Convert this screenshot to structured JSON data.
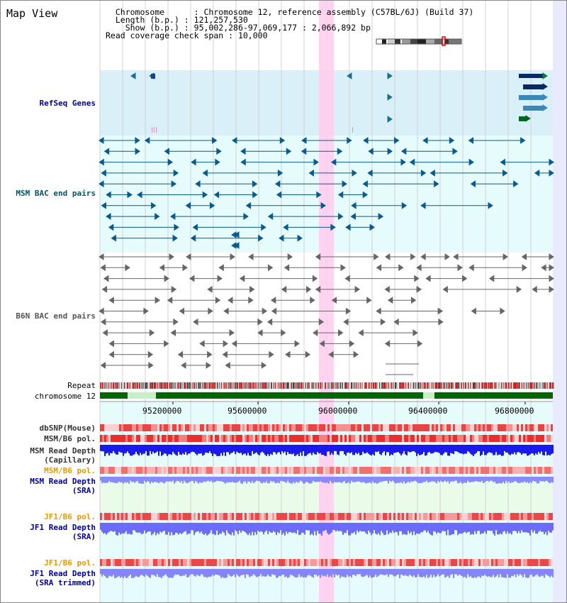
{
  "page": {
    "title": "Map View"
  },
  "info": {
    "chromosome_key": "Chromosome",
    "chromosome_value": "Chromosome 12, reference assembly (C57BL/6J) (Build 37)",
    "length_key": "Length (b.p.)",
    "length_value": "121,257,530",
    "show_key": "Show (b.p.)",
    "show_value": "95,002,286-97,069,177 : 2,066,892 bp",
    "coverage_key": "Read coverage check span",
    "coverage_value": "10,000"
  },
  "colors": {
    "refseq_bg": "#d9f0f8",
    "msm_bg": "#e6fbfb",
    "pink_highlight": "#ffccee",
    "track_blue": "#0a5a8c",
    "track_gray": "#555555",
    "repeat_red": "#cc2222",
    "chrom_green": "#006600",
    "snp_red": "#e23b3b",
    "depth_blue": "#1a1aee",
    "depth_light_blue": "#8a8aff",
    "label_navy": "#000099",
    "label_teal": "#005566",
    "label_orange": "#e69900"
  },
  "tracks": {
    "refseq": "RefSeq Genes",
    "msm_bac": "MSM BAC end pairs",
    "b6n_bac": "B6N BAC end pairs",
    "repeat": "Repeat",
    "chromosome": "chromosome 12",
    "dbsnp": "dbSNP(Mouse)",
    "msm_pol": "MSM/B6 pol.",
    "msm_depth_cap_1": "MSM Read Depth",
    "msm_depth_cap_2": "(Capillary)",
    "msm_pol_sra": "MSM/B6 pol.",
    "msm_depth_sra_1": "MSM Read Depth",
    "msm_depth_sra_2": "(SRA)",
    "jf1_pol": "JF1/B6 pol.",
    "jf1_depth_1": "JF1 Read Depth",
    "jf1_depth_2": "(SRA)",
    "jf1_pol_trim": "JF1/B6 pol.",
    "jf1_depth_trim_1": "JF1 Read Depth",
    "jf1_depth_trim_2": "(SRA trimmed)"
  },
  "axis": {
    "ticks": [
      {
        "bp": 95200000,
        "label": "95200000"
      },
      {
        "bp": 95600000,
        "label": "95600000"
      },
      {
        "bp": 96000000,
        "label": "96000000"
      },
      {
        "bp": 96400000,
        "label": "96400000"
      },
      {
        "bp": 96800000,
        "label": "96800000"
      }
    ]
  }
}
